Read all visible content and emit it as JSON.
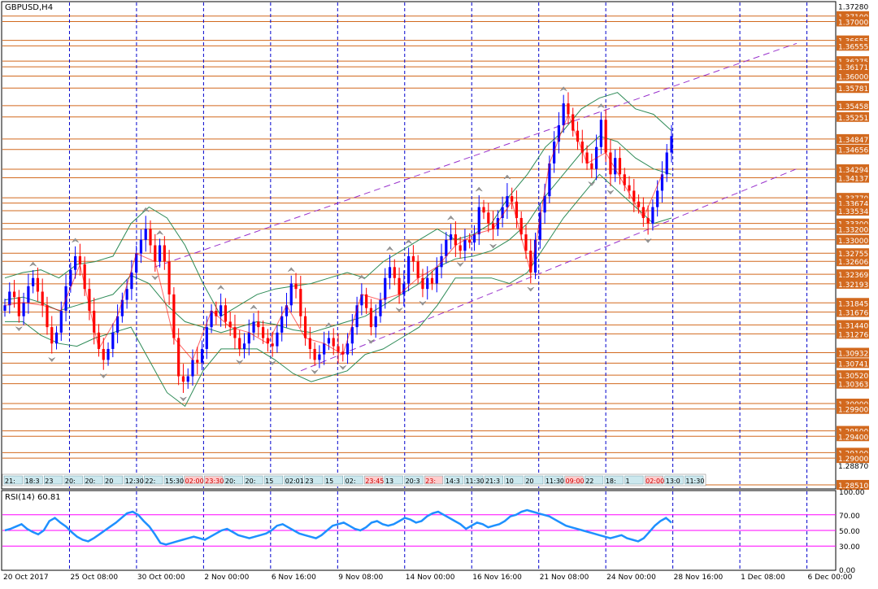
{
  "chart_data": {
    "type": "candlestick",
    "title": "GBPUSD,H4",
    "main": {
      "ylim": [
        1.2845,
        1.3735
      ],
      "ytick_labels": [
        "1.37280",
        "1.28870"
      ],
      "x_tick_labels": [
        "20 Oct 2017",
        "25 Oct 08:00",
        "30 Oct 00:00",
        "2 Nov 00:00",
        "6 Nov 16:00",
        "9 Nov 08:00",
        "14 Nov 00:00",
        "16 Nov 16:00",
        "21 Nov 08:00",
        "24 Nov 00:00",
        "28 Nov 16:00",
        "1 Dec 08:00",
        "6 Dec 00:00"
      ],
      "level_lines": [
        1.371,
        1.37,
        1.36655,
        1.36555,
        1.36275,
        1.36171,
        1.36,
        1.35781,
        1.35458,
        1.35251,
        1.34847,
        1.34656,
        1.34294,
        1.34137,
        1.3377,
        1.33674,
        1.33534,
        1.333,
        1.332,
        1.33,
        1.32755,
        1.32606,
        1.32369,
        1.32193,
        1.31845,
        1.31676,
        1.3144,
        1.31276,
        1.30932,
        1.30741,
        1.3052,
        1.30363,
        1.3,
        1.299,
        1.295,
        1.294,
        1.291,
        1.29,
        1.2851
      ],
      "level_labels": [
        "1.37100",
        "1.37000",
        "1.36655",
        "1.36555",
        "1.36275",
        "1.36171",
        "1.36000",
        "1.35781",
        "1.35458",
        "1.35251",
        "1.34847",
        "1.34656",
        "1.34294",
        "1.34137",
        "1.33770",
        "1.33674",
        "1.33534",
        "1.33300",
        "1.33200",
        "1.33000",
        "1.32755",
        "1.32606",
        "1.32369",
        "1.32193",
        "1.31845",
        "1.31676",
        "1.31440",
        "1.31276",
        "1.30932",
        "1.30741",
        "1.30520",
        "1.30363",
        "1.30000",
        "1.29900",
        "1.29500",
        "1.29400",
        "1.29100",
        "1.29000",
        "1.28510"
      ],
      "price_series": [
        1.318,
        1.3205,
        1.3195,
        1.316,
        1.3185,
        1.3215,
        1.323,
        1.3205,
        1.318,
        1.314,
        1.311,
        1.313,
        1.317,
        1.3215,
        1.3245,
        1.327,
        1.3255,
        1.321,
        1.317,
        1.313,
        1.31,
        1.308,
        1.31,
        1.313,
        1.316,
        1.319,
        1.321,
        1.324,
        1.3275,
        1.33,
        1.332,
        1.329,
        1.326,
        1.329,
        1.326,
        1.32,
        1.312,
        1.305,
        1.304,
        1.305,
        1.308,
        1.3075,
        1.31,
        1.314,
        1.317,
        1.316,
        1.318,
        1.315,
        1.314,
        1.312,
        1.31,
        1.311,
        1.313,
        1.315,
        1.314,
        1.312,
        1.311,
        1.3105,
        1.313,
        1.316,
        1.318,
        1.322,
        1.321,
        1.316,
        1.312,
        1.31,
        1.308,
        1.309,
        1.311,
        1.312,
        1.3105,
        1.3095,
        1.309,
        1.311,
        1.314,
        1.318,
        1.32,
        1.3175,
        1.314,
        1.316,
        1.319,
        1.323,
        1.325,
        1.323,
        1.32,
        1.322,
        1.327,
        1.326,
        1.323,
        1.321,
        1.323,
        1.322,
        1.325,
        1.327,
        1.33,
        1.331,
        1.329,
        1.328,
        1.33,
        1.3295,
        1.331,
        1.336,
        1.335,
        1.333,
        1.332,
        1.334,
        1.336,
        1.338,
        1.337,
        1.334,
        1.331,
        1.328,
        1.324,
        1.33,
        1.335,
        1.338,
        1.344,
        1.348,
        1.351,
        1.355,
        1.353,
        1.35,
        1.348,
        1.346,
        1.344,
        1.343,
        1.347,
        1.352,
        1.346,
        1.342,
        1.345,
        1.342,
        1.34,
        1.339,
        1.337,
        1.336,
        1.334,
        1.333,
        1.336,
        1.339,
        1.342,
        1.346,
        1.349
      ],
      "bollinger_upper": [
        1.323,
        1.324,
        1.3245,
        1.323,
        1.3255,
        1.326,
        1.327,
        1.333,
        1.336,
        1.334,
        1.329,
        1.322,
        1.316,
        1.318,
        1.32,
        1.321,
        1.3215,
        1.322,
        1.323,
        1.324,
        1.323,
        1.326,
        1.328,
        1.33,
        1.332,
        1.33,
        1.331,
        1.333,
        1.338,
        1.342,
        1.347,
        1.35,
        1.354,
        1.356,
        1.357,
        1.354,
        1.353,
        1.35
      ],
      "bollinger_middle": [
        1.319,
        1.3195,
        1.3185,
        1.317,
        1.318,
        1.319,
        1.32,
        1.3235,
        1.322,
        1.318,
        1.315,
        1.314,
        1.313,
        1.314,
        1.315,
        1.3145,
        1.3135,
        1.313,
        1.314,
        1.315,
        1.316,
        1.318,
        1.32,
        1.322,
        1.325,
        1.3265,
        1.327,
        1.328,
        1.33,
        1.333,
        1.338,
        1.342,
        1.346,
        1.349,
        1.348,
        1.345,
        1.343,
        1.342
      ],
      "bollinger_lower": [
        1.315,
        1.315,
        1.3125,
        1.311,
        1.3105,
        1.312,
        1.313,
        1.314,
        1.308,
        1.302,
        1.2995,
        1.306,
        1.31,
        1.31,
        1.31,
        1.308,
        1.3055,
        1.304,
        1.305,
        1.306,
        1.309,
        1.31,
        1.312,
        1.314,
        1.318,
        1.323,
        1.323,
        1.323,
        1.322,
        1.324,
        1.329,
        1.334,
        1.338,
        1.342,
        1.339,
        1.336,
        1.333,
        1.334
      ],
      "channel_upper": [
        [
          1.325,
          1.366
        ]
      ],
      "channel_lower": [
        [
          1.306,
          1.343
        ]
      ]
    },
    "time_labels": [
      "21:",
      "18:3",
      "23",
      "20:",
      "20:",
      "20",
      "12:30",
      "22:",
      "15:30",
      "02:00",
      "23:30",
      "20:",
      "20:",
      "15",
      "02:01",
      "23",
      "15",
      "02:",
      "23:45",
      "13",
      "20:3",
      "23:",
      "14:3",
      "11:30",
      "21:3",
      "10",
      "20",
      "11:30",
      "09:00",
      "22",
      "18:",
      "1",
      "02:00",
      "13:0",
      "11:30"
    ],
    "rsi": {
      "label": "RSI(14) 60.81",
      "ylim": [
        0,
        100
      ],
      "levels": [
        70,
        50,
        30
      ],
      "tick_labels": [
        "100.00",
        "70.00",
        "50.00",
        "30.00",
        "0.00"
      ],
      "values": [
        50,
        52,
        55,
        58,
        52,
        48,
        45,
        50,
        62,
        66,
        60,
        55,
        48,
        42,
        38,
        36,
        40,
        45,
        50,
        55,
        60,
        66,
        72,
        74,
        70,
        62,
        55,
        45,
        34,
        32,
        34,
        36,
        38,
        40,
        42,
        40,
        38,
        42,
        46,
        50,
        52,
        48,
        44,
        42,
        40,
        42,
        44,
        46,
        50,
        56,
        58,
        54,
        50,
        46,
        44,
        42,
        40,
        44,
        50,
        56,
        58,
        60,
        56,
        52,
        50,
        54,
        60,
        62,
        58,
        56,
        58,
        62,
        66,
        64,
        60,
        62,
        68,
        72,
        74,
        70,
        66,
        62,
        58,
        52,
        56,
        60,
        58,
        54,
        56,
        58,
        62,
        68,
        70,
        74,
        76,
        74,
        72,
        70,
        68,
        64,
        60,
        56,
        54,
        52,
        50,
        48,
        46,
        44,
        42,
        40,
        42,
        44,
        40,
        38,
        36,
        40,
        48,
        56,
        62,
        66,
        60
      ]
    }
  }
}
